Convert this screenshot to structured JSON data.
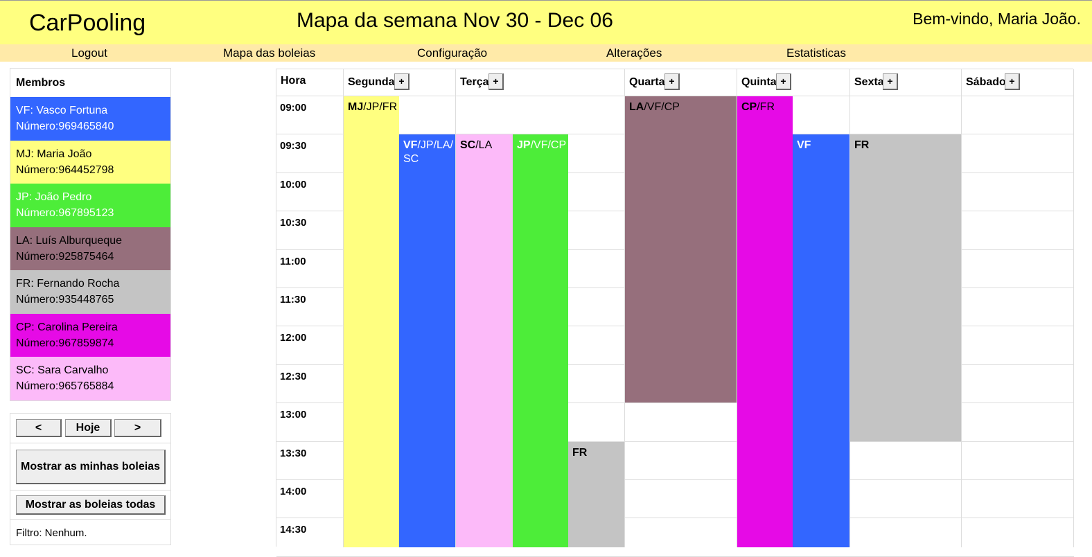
{
  "header": {
    "brand": "CarPooling",
    "week_title": "Mapa da semana Nov 30 - Dec 06",
    "welcome": "Bem-vindo, Maria João."
  },
  "nav": [
    "Logout",
    "Mapa das boleias",
    "Configuração",
    "Alterações",
    "Estatisticas"
  ],
  "members": {
    "title": "Membros",
    "items": [
      {
        "line1": "VF: Vasco Fortuna",
        "line2": "Número:969465840",
        "color": "#3366ff",
        "text_color": "#ffffff"
      },
      {
        "line1": "MJ: Maria João",
        "line2": "Número:964452798",
        "color": "#ffff80",
        "text_color": "#000000"
      },
      {
        "line1": "JP: João Pedro",
        "line2": "Número:967895123",
        "color": "#4ded39",
        "text_color": "#ffffff"
      },
      {
        "line1": "LA: Luís Alburqueque",
        "line2": "Número:925875464",
        "color": "#966f7c",
        "text_color": "#000000"
      },
      {
        "line1": "FR: Fernando Rocha",
        "line2": "Número:935448765",
        "color": "#c4c4c4",
        "text_color": "#000000"
      },
      {
        "line1": "CP: Carolina Pereira",
        "line2": "Número:967859874",
        "color": "#e60ae6",
        "text_color": "#000000"
      },
      {
        "line1": "SC: Sara Carvalho",
        "line2": "Número:965765884",
        "color": "#fcbaf9",
        "text_color": "#000000"
      }
    ]
  },
  "controls": {
    "prev": "<",
    "today": "Hoje",
    "next": ">",
    "mine": "Mostrar as minhas boleias",
    "all": "Mostrar as boleias todas",
    "filter": "Filtro: Nenhum."
  },
  "calendar": {
    "hour_label": "Hora",
    "add_label": "+",
    "days": [
      "Segunda",
      "Terça",
      "Quarta",
      "Quinta",
      "Sexta",
      "Sábado"
    ],
    "times": [
      "09:00",
      "09:30",
      "10:00",
      "10:30",
      "11:00",
      "11:30",
      "12:00",
      "12:30",
      "13:00",
      "13:30",
      "14:00",
      "14:30"
    ],
    "events": [
      {
        "day": 0,
        "sub": 0,
        "start": "09:00",
        "end": "",
        "driver": "MJ",
        "rest": "/JP/FR",
        "color": "#ffff80",
        "text_color": "#000000"
      },
      {
        "day": 0,
        "sub": 1,
        "start": "09:30",
        "end": "",
        "driver": "VF",
        "rest": "/JP/LA/SC",
        "color": "#3366ff",
        "text_color": "#ffffff"
      },
      {
        "day": 1,
        "sub": 0,
        "start": "09:30",
        "end": "",
        "driver": "SC",
        "rest": "/LA",
        "color": "#fcbaf9",
        "text_color": "#000000"
      },
      {
        "day": 1,
        "sub": 1,
        "start": "09:30",
        "end": "",
        "driver": "JP",
        "rest": "/VF/CP",
        "color": "#4ded39",
        "text_color": "#ffffff"
      },
      {
        "day": 1,
        "sub": 2,
        "start": "13:30",
        "end": "",
        "driver": "FR",
        "rest": "",
        "color": "#c4c4c4",
        "text_color": "#000000"
      },
      {
        "day": 2,
        "sub": 0,
        "start": "09:00",
        "end": "13:00",
        "driver": "LA",
        "rest": "/VF/CP",
        "color": "#966f7c",
        "text_color": "#000000"
      },
      {
        "day": 3,
        "sub": 0,
        "start": "09:00",
        "end": "",
        "driver": "CP",
        "rest": "/FR",
        "color": "#e60ae6",
        "text_color": "#000000"
      },
      {
        "day": 3,
        "sub": 1,
        "start": "09:30",
        "end": "",
        "driver": "VF",
        "rest": "",
        "color": "#3366ff",
        "text_color": "#ffffff"
      },
      {
        "day": 4,
        "sub": 0,
        "start": "09:30",
        "end": "13:30",
        "driver": "FR",
        "rest": "",
        "color": "#c4c4c4",
        "text_color": "#000000"
      }
    ]
  }
}
